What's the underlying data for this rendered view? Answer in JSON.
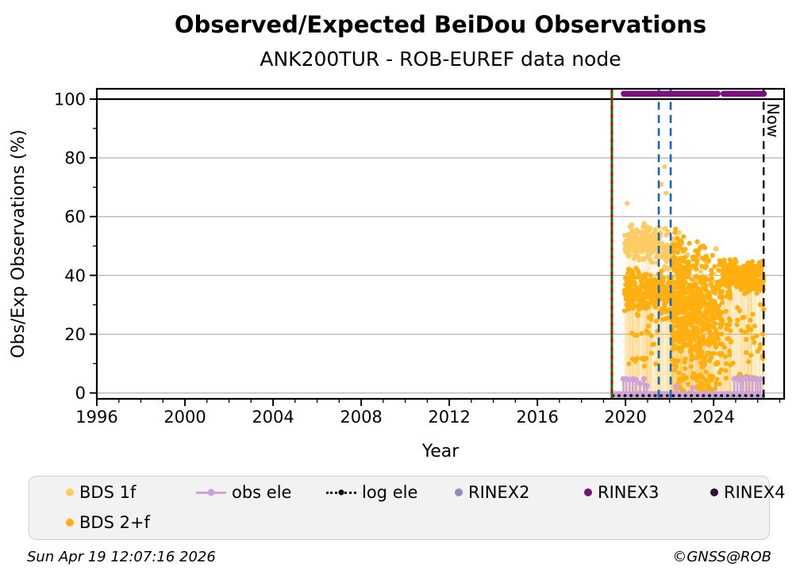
{
  "title": "Observed/Expected BeiDou Observations",
  "subtitle": "ANK200TUR - ROB-EUREF data node",
  "footer": {
    "left": "Sun Apr 19 12:07:16 2026",
    "right": "©GNSS@ROB"
  },
  "legend": {
    "items": [
      {
        "label": "BDS 1f",
        "marker": "dot",
        "color": "#ffcb63",
        "row": 0
      },
      {
        "label": "obs ele",
        "marker": "line-dot",
        "color": "#cda4da",
        "row": 0
      },
      {
        "label": "log ele",
        "marker": "dotted-line-dot",
        "color": "#000000",
        "row": 0
      },
      {
        "label": "RINEX2",
        "marker": "dot",
        "color": "#918bc9",
        "row": 0
      },
      {
        "label": "RINEX3",
        "marker": "dot",
        "color": "#79137b",
        "row": 0
      },
      {
        "label": "RINEX4",
        "marker": "dot",
        "color": "#330a38",
        "row": 0
      },
      {
        "label": "BDS 2+f",
        "marker": "dot",
        "color": "#ffaf0f",
        "row": 1
      }
    ]
  },
  "chart_data": {
    "type": "scatter",
    "title": "Observed/Expected BeiDou Observations",
    "subtitle": "ANK200TUR - ROB-EUREF data node",
    "xlabel": "Year",
    "ylabel": "Obs/Exp Observations (%)",
    "x_axis": {
      "min": 1996.0,
      "max": 2027.2,
      "major_ticks": [
        1996,
        2000,
        2004,
        2008,
        2012,
        2016,
        2020,
        2024
      ],
      "minor_step": 1
    },
    "y_axis": {
      "min": -2,
      "max": 103.5,
      "major_ticks": [
        0,
        20,
        40,
        60,
        80,
        100
      ],
      "minor_step": 10
    },
    "grid": "horizontal-major",
    "grid_color": "#b3b3b3",
    "hundred_line": {
      "y": 100,
      "color": "#000000",
      "width": 2.2
    },
    "now_label": "Now",
    "reference_lines": [
      {
        "name": "station-start",
        "x": 2019.38,
        "style": "green-red-dashed",
        "colors": [
          "#008000",
          "#dd0000"
        ],
        "width": 3
      },
      {
        "name": "event-1",
        "x": 2021.51,
        "style": "dashed",
        "color": "#1565b8",
        "width": 2.6
      },
      {
        "name": "event-2",
        "x": 2022.05,
        "style": "dashed",
        "color": "#1565b8",
        "width": 2.6
      },
      {
        "name": "now",
        "x": 2026.27,
        "style": "dashed",
        "color": "#000000",
        "width": 2.4,
        "label": "Now"
      }
    ],
    "series": [
      {
        "name": "BDS 1f",
        "kind": "scatter",
        "color": "#ffcb63",
        "marker_px": 3.1,
        "clusters": [
          {
            "x": [
              2019.95,
              2021.58
            ],
            "y": [
              44,
              58
            ],
            "n": 180,
            "dist": "mid"
          },
          {
            "x": [
              2021.58,
              2022.45
            ],
            "y": [
              38,
              57
            ],
            "n": 80,
            "dist": "mid"
          },
          {
            "x": [
              2022.1,
              2024.2
            ],
            "y": [
              18,
              50
            ],
            "n": 60,
            "dist": "uniform"
          }
        ],
        "outliers": [
          [
            2020.07,
            64.5
          ],
          [
            2021.63,
            71
          ],
          [
            2021.78,
            77
          ],
          [
            2021.84,
            68
          ]
        ]
      },
      {
        "name": "BDS 2+f",
        "kind": "scatter",
        "color": "#ffaf0f",
        "marker_px": 3.1,
        "clusters": [
          {
            "x": [
              2019.95,
              2021.58
            ],
            "y": [
              27,
              43
            ],
            "n": 210,
            "dist": "mid"
          },
          {
            "x": [
              2019.98,
              2021.5
            ],
            "y": [
              8,
              27
            ],
            "n": 28,
            "dist": "uniform"
          },
          {
            "x": [
              2021.58,
              2022.08
            ],
            "y": [
              24,
              43
            ],
            "n": 55,
            "dist": "mid"
          },
          {
            "x": [
              2022.08,
              2022.85
            ],
            "y": [
              4,
              57
            ],
            "n": 250,
            "dist": "mid"
          },
          {
            "x": [
              2022.85,
              2023.65
            ],
            "y": [
              2,
              53
            ],
            "n": 230,
            "dist": "mid"
          },
          {
            "x": [
              2023.65,
              2024.4
            ],
            "y": [
              4,
              48
            ],
            "n": 150,
            "dist": "mid"
          },
          {
            "x": [
              2022.3,
              2024.3
            ],
            "y": [
              0,
              6
            ],
            "n": 40,
            "dist": "uniform"
          },
          {
            "x": [
              2024.4,
              2026.28
            ],
            "y": [
              33,
              46
            ],
            "n": 270,
            "dist": "mid"
          },
          {
            "x": [
              2024.4,
              2026.28
            ],
            "y": [
              4,
              33
            ],
            "n": 60,
            "dist": "uniform"
          }
        ],
        "outliers": []
      },
      {
        "name": "obs ele",
        "kind": "lollipop",
        "color": "#cda4da",
        "baseline_band": {
          "x": [
            2019.45,
            2026.28
          ],
          "y": [
            -1.8,
            0.6
          ]
        },
        "spikes": [
          [
            2019.9,
            4.8
          ],
          [
            2020.03,
            4.8
          ],
          [
            2020.18,
            4.5
          ],
          [
            2020.33,
            4.8
          ],
          [
            2020.47,
            4.5
          ],
          [
            2020.66,
            3.2
          ],
          [
            2020.84,
            4.8
          ],
          [
            2020.97,
            2.5
          ],
          [
            2022.3,
            2.2
          ],
          [
            2023.05,
            1.8
          ],
          [
            2024.94,
            4.8
          ],
          [
            2025.08,
            5.2
          ],
          [
            2025.23,
            4.6
          ],
          [
            2025.33,
            5.2
          ],
          [
            2025.48,
            4.8
          ],
          [
            2025.62,
            5.2
          ],
          [
            2025.77,
            4.6
          ],
          [
            2025.91,
            5.0
          ],
          [
            2026.02,
            4.6
          ],
          [
            2026.13,
            4.8
          ]
        ]
      },
      {
        "name": "log ele",
        "kind": "dotted-line",
        "color": "#000000",
        "y": -0.9,
        "x_range": [
          2019.42,
          2026.27
        ]
      },
      {
        "name": "RINEX2",
        "kind": "rinex-line",
        "color": "#918bc9",
        "y": 101.8,
        "segments": []
      },
      {
        "name": "RINEX3",
        "kind": "rinex-line",
        "color": "#79137b",
        "y": 101.8,
        "segments": [
          [
            2019.92,
            2024.18
          ],
          [
            2024.45,
            2026.28
          ]
        ]
      },
      {
        "name": "RINEX4",
        "kind": "rinex-line",
        "color": "#330a38",
        "y": 101.8,
        "segments": []
      }
    ],
    "legend_position": "bottom"
  }
}
